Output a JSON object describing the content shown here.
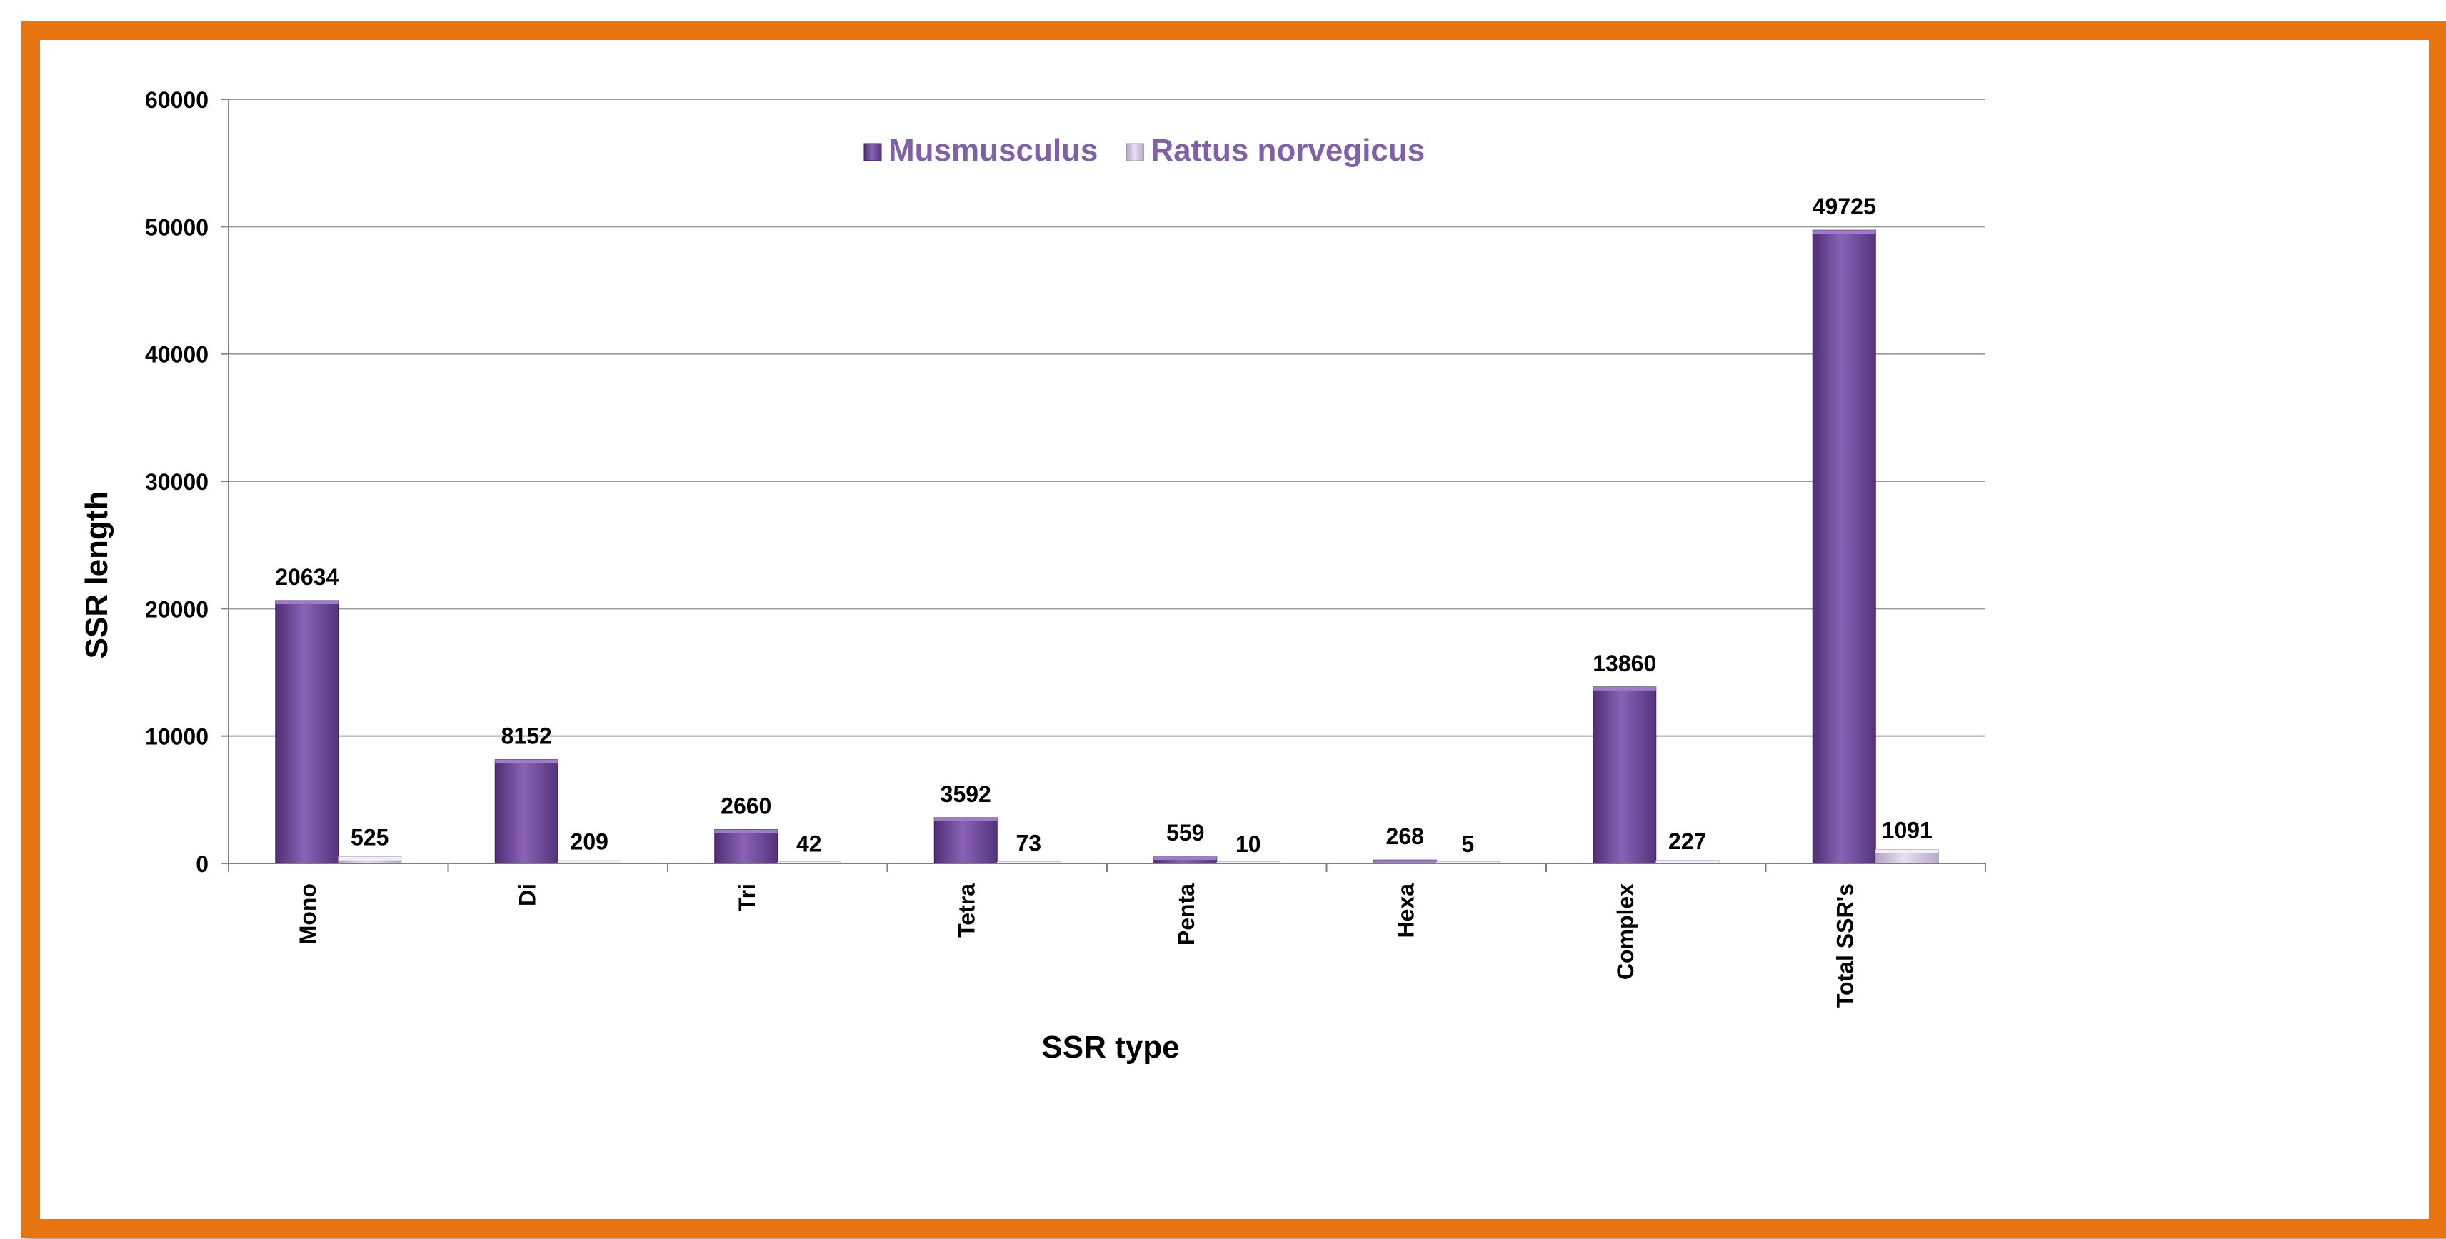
{
  "chart_data": {
    "type": "bar",
    "title": "",
    "xlabel": "SSR type",
    "ylabel": "SSR length",
    "ylim": [
      0,
      60000
    ],
    "yticks": [
      0,
      10000,
      20000,
      30000,
      40000,
      50000,
      60000
    ],
    "grid": true,
    "legend_position": "top",
    "categories": [
      "Mono",
      "Di",
      "Tri",
      "Tetra",
      "Penta",
      "Hexa",
      "Complex",
      "Total SSR's"
    ],
    "series": [
      {
        "name": "Musmusculus",
        "color": "#6a4393",
        "values": [
          20634,
          8152,
          2660,
          3592,
          559,
          268,
          13860,
          49725
        ]
      },
      {
        "name": "Rattus norvegicus",
        "color": "#c3b5d6",
        "values": [
          525,
          209,
          42,
          73,
          10,
          5,
          227,
          1091
        ]
      }
    ]
  },
  "colors": {
    "frame": "#e87511",
    "legend_text": "#8060a8"
  }
}
